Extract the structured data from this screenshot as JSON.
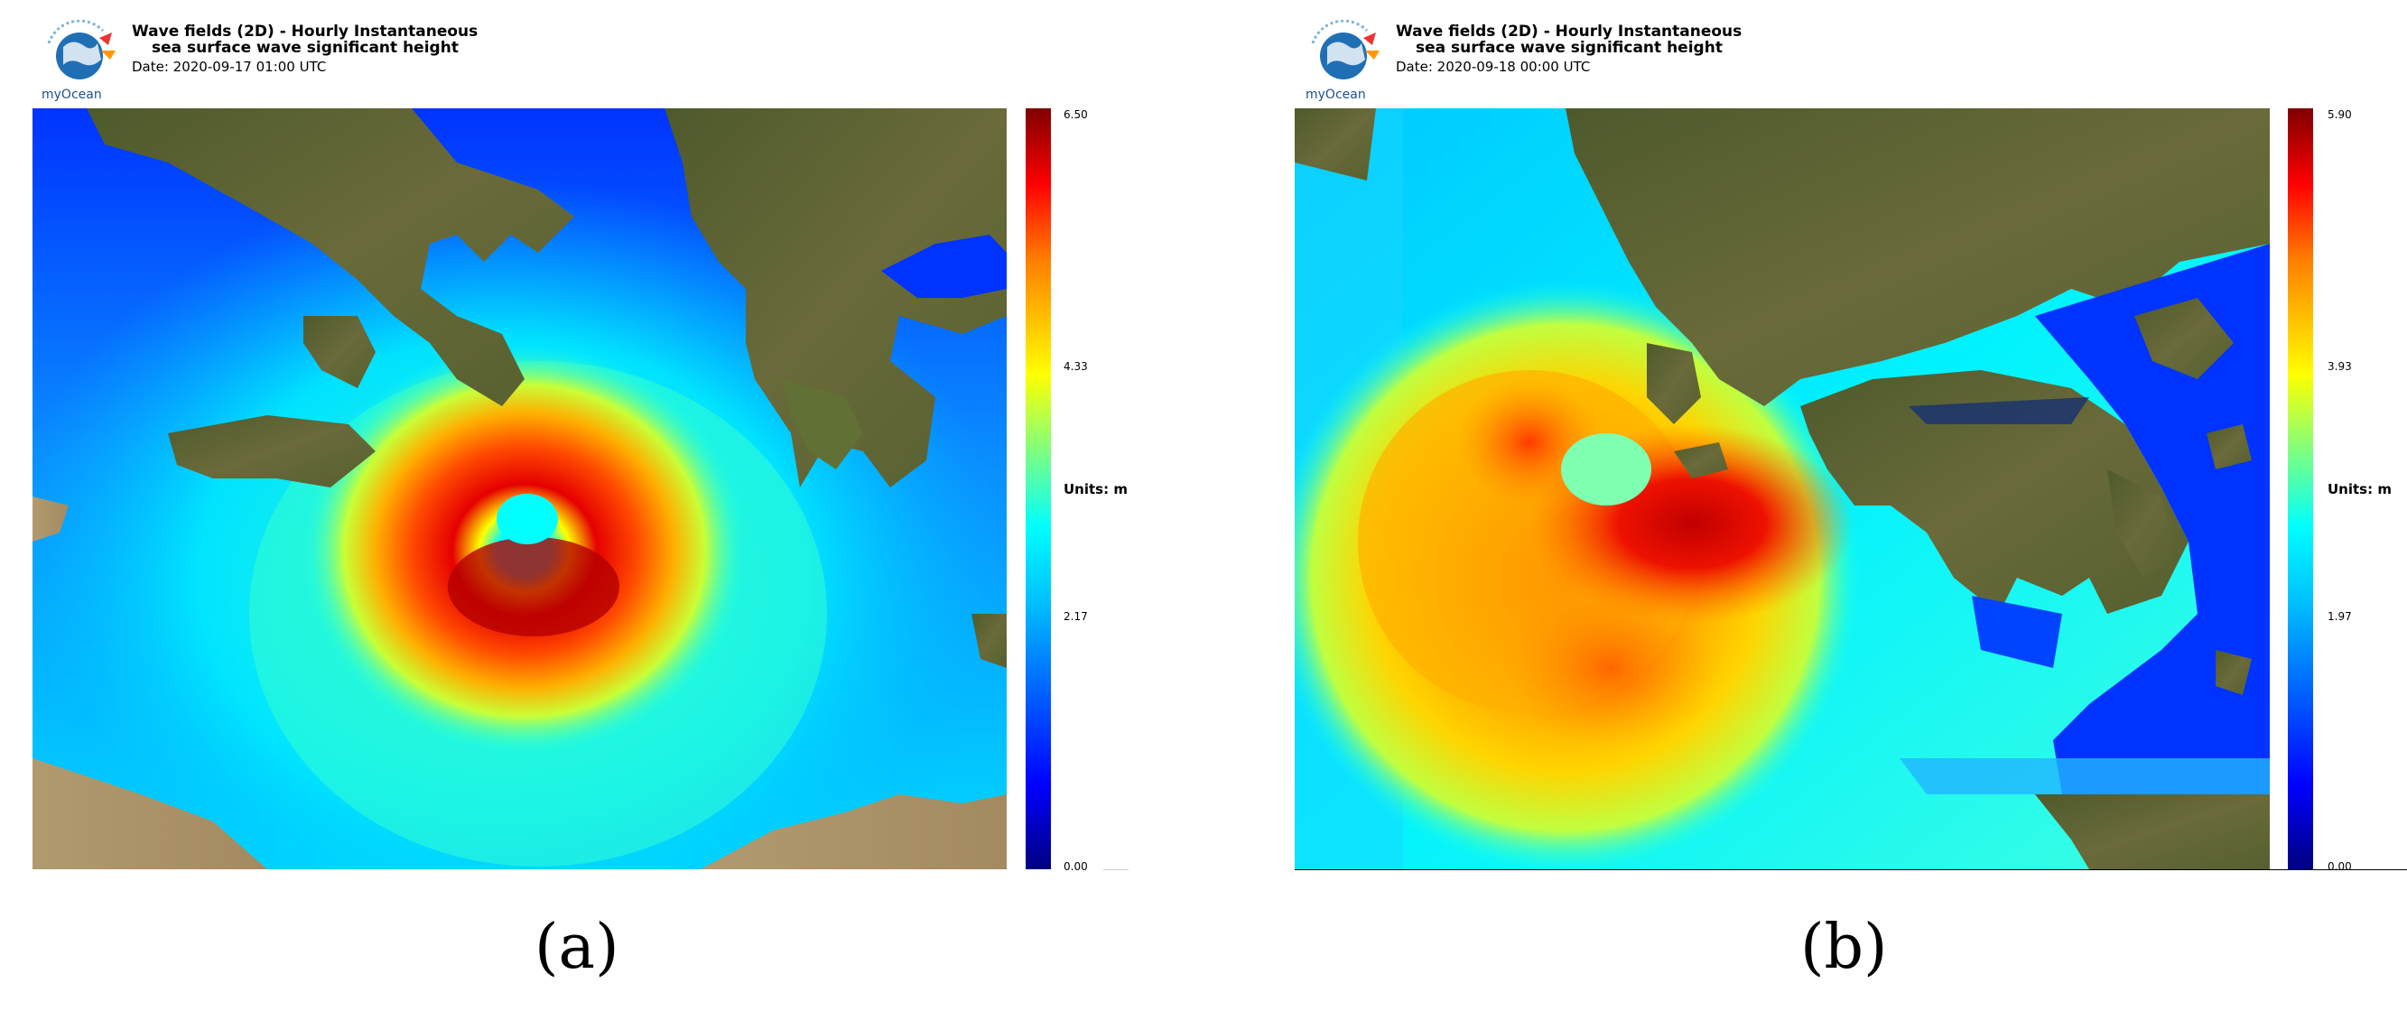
{
  "panels": [
    {
      "id": "a",
      "logo_text": "myOcean",
      "title_line1": "Wave fields (2D) - Hourly Instantaneous",
      "title_line2": "sea surface wave significant height",
      "date": "Date: 2020-09-17 01:00 UTC",
      "colorbar_ticks": [
        "6.50",
        "4.33",
        "2.17",
        "0.00"
      ],
      "colorbar_max": 6.5,
      "units": "Units: m",
      "label": "(a)"
    },
    {
      "id": "b",
      "logo_text": "myOcean",
      "title_line1": "Wave fields (2D) - Hourly Instantaneous",
      "title_line2": "sea surface wave significant height",
      "date": "Date: 2020-09-18 00:00 UTC",
      "colorbar_ticks": [
        "5.90",
        "3.93",
        "1.97",
        "0.00"
      ],
      "colorbar_max": 5.9,
      "units": "Units: m",
      "label": "(b)"
    }
  ],
  "colors": {
    "jet": [
      "#00007f",
      "#0000ff",
      "#007fff",
      "#00ffff",
      "#7fff7f",
      "#ffff00",
      "#ff7f00",
      "#ff0000",
      "#7f0000"
    ],
    "land": "#5a5e32",
    "land_arid": "#b09a72"
  }
}
